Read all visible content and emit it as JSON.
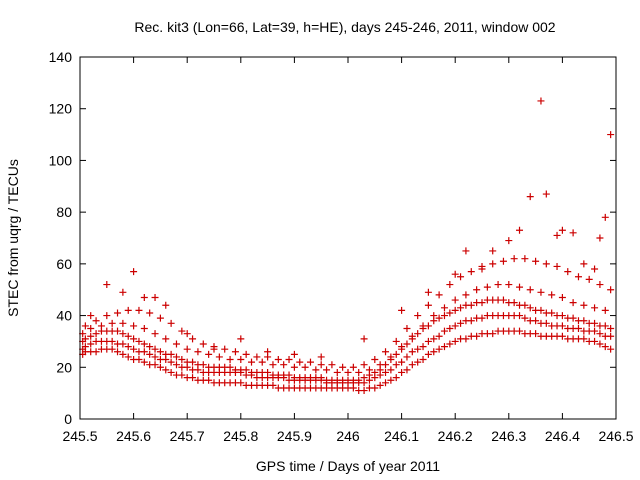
{
  "chart_data": {
    "type": "scatter",
    "title": "Rec. kit3 (Lon=66, Lat=39, h=HE), days 245-246, 2011, window 002",
    "xlabel": "GPS time / Days of year 2011",
    "ylabel": "STEC from uqrg / TECUs",
    "xlim": [
      245.5,
      246.5
    ],
    "ylim": [
      0,
      140
    ],
    "xticks": [
      "245.5",
      "245.6",
      "245.7",
      "245.8",
      "245.9",
      "246",
      "246.1",
      "246.2",
      "246.3",
      "246.4",
      "246.5"
    ],
    "yticks": [
      "0",
      "20",
      "40",
      "60",
      "80",
      "100",
      "120",
      "140"
    ],
    "grid": false,
    "marker": "+",
    "color": "#cc0000",
    "series": [
      {
        "x": [
          245.505,
          245.51,
          245.52,
          245.53,
          245.54,
          245.55,
          245.56,
          245.57,
          245.58,
          245.59,
          245.6,
          245.61,
          245.62,
          245.63,
          245.64,
          245.65,
          245.66,
          245.67,
          245.68,
          245.69,
          245.7,
          245.71,
          245.72,
          245.73,
          245.74,
          245.75,
          245.76,
          245.77,
          245.78,
          245.79,
          245.8,
          245.81,
          245.82,
          245.83,
          245.84,
          245.85,
          245.86,
          245.87,
          245.88,
          245.89,
          245.9,
          245.91,
          245.92,
          245.93,
          245.94,
          245.95,
          245.96,
          245.97,
          245.98,
          245.99,
          246.0,
          246.01,
          246.02,
          246.03,
          246.04,
          246.05,
          246.06,
          246.07,
          246.08,
          246.09,
          246.1,
          246.11,
          246.12,
          246.13,
          246.14,
          246.15,
          246.16,
          246.17,
          246.18,
          246.19,
          246.2,
          246.21,
          246.22,
          246.23,
          246.24,
          246.25,
          246.26,
          246.27,
          246.28,
          246.29,
          246.3,
          246.31,
          246.32,
          246.33,
          246.34,
          246.35,
          246.36,
          246.37,
          246.38,
          246.39,
          246.4,
          246.41,
          246.42,
          246.43,
          246.44,
          246.45,
          246.46,
          246.47,
          246.48,
          246.49
        ],
        "y": [
          25,
          26,
          26,
          26,
          27,
          27,
          27,
          26,
          25,
          24,
          23,
          23,
          22,
          21,
          21,
          20,
          19,
          18,
          17,
          17,
          16,
          16,
          15,
          15,
          15,
          14,
          14,
          14,
          14,
          14,
          14,
          13,
          13,
          13,
          13,
          13,
          13,
          12,
          12,
          12,
          12,
          12,
          12,
          12,
          12,
          12,
          12,
          12,
          12,
          12,
          12,
          12,
          11,
          11,
          12,
          12,
          13,
          14,
          15,
          16,
          18,
          19,
          21,
          22,
          23,
          25,
          26,
          27,
          28,
          29,
          30,
          31,
          31,
          32,
          32,
          33,
          33,
          33,
          34,
          34,
          34,
          34,
          34,
          33,
          33,
          33,
          32,
          32,
          32,
          32,
          32,
          31,
          31,
          31,
          31,
          30,
          30,
          29,
          28,
          27
        ]
      },
      {
        "x": [
          245.505,
          245.51,
          245.52,
          245.53,
          245.54,
          245.55,
          245.56,
          245.57,
          245.58,
          245.59,
          245.6,
          245.61,
          245.62,
          245.63,
          245.64,
          245.65,
          245.66,
          245.67,
          245.68,
          245.69,
          245.7,
          245.71,
          245.72,
          245.73,
          245.74,
          245.75,
          245.76,
          245.77,
          245.78,
          245.79,
          245.8,
          245.81,
          245.82,
          245.83,
          245.84,
          245.85,
          245.86,
          245.87,
          245.88,
          245.89,
          245.9,
          245.91,
          245.92,
          245.93,
          245.94,
          245.95,
          245.96,
          245.97,
          245.98,
          245.99,
          246.0,
          246.01,
          246.02,
          246.03,
          246.04,
          246.05,
          246.06,
          246.07,
          246.08,
          246.09,
          246.1,
          246.11,
          246.12,
          246.13,
          246.14,
          246.15,
          246.16,
          246.17,
          246.18,
          246.19,
          246.2,
          246.21,
          246.22,
          246.23,
          246.24,
          246.25,
          246.26,
          246.27,
          246.28,
          246.29,
          246.3,
          246.31,
          246.32,
          246.33,
          246.34,
          246.35,
          246.36,
          246.37,
          246.38,
          246.39,
          246.4,
          246.41,
          246.42,
          246.43,
          246.44,
          246.45,
          246.46,
          246.47,
          246.48,
          246.49
        ],
        "y": [
          27,
          28,
          29,
          30,
          30,
          30,
          30,
          29,
          29,
          28,
          27,
          26,
          26,
          25,
          24,
          23,
          23,
          22,
          21,
          20,
          20,
          19,
          19,
          18,
          18,
          18,
          18,
          18,
          18,
          18,
          18,
          17,
          17,
          16,
          16,
          16,
          16,
          16,
          16,
          15,
          15,
          15,
          15,
          15,
          15,
          15,
          14,
          14,
          14,
          14,
          14,
          14,
          14,
          14,
          15,
          16,
          17,
          18,
          19,
          21,
          22,
          24,
          26,
          27,
          28,
          30,
          31,
          32,
          34,
          35,
          36,
          37,
          38,
          38,
          39,
          39,
          40,
          40,
          40,
          40,
          40,
          40,
          40,
          39,
          38,
          38,
          37,
          37,
          36,
          36,
          36,
          35,
          35,
          35,
          34,
          34,
          34,
          33,
          32,
          32
        ]
      },
      {
        "x": [
          245.505,
          245.51,
          245.52,
          245.53,
          245.54,
          245.55,
          245.56,
          245.57,
          245.58,
          245.59,
          245.6,
          245.61,
          245.62,
          245.63,
          245.64,
          245.65,
          245.66,
          245.67,
          245.68,
          245.69,
          245.7,
          245.71,
          245.72,
          245.73,
          245.74,
          245.75,
          245.76,
          245.77,
          245.78,
          245.79,
          245.8,
          245.81,
          245.82,
          245.83,
          245.84,
          245.85,
          245.86,
          245.87,
          245.88,
          245.89,
          245.9,
          245.91,
          245.92,
          245.93,
          245.94,
          245.95,
          245.96,
          245.97,
          245.98,
          245.99,
          246.0,
          246.01,
          246.02,
          246.03,
          246.04,
          246.05,
          246.06,
          246.07,
          246.08,
          246.09,
          246.1,
          246.11,
          246.12,
          246.13,
          246.14,
          246.15,
          246.16,
          246.17,
          246.18,
          246.19,
          246.2,
          246.21,
          246.22,
          246.23,
          246.24,
          246.25,
          246.26,
          246.27,
          246.28,
          246.29,
          246.3,
          246.31,
          246.32,
          246.33,
          246.34,
          246.35,
          246.36,
          246.37,
          246.38,
          246.39,
          246.4,
          246.41,
          246.42,
          246.43,
          246.44,
          246.45,
          246.46,
          246.47,
          246.48,
          246.49
        ],
        "y": [
          30,
          31,
          32,
          33,
          34,
          34,
          34,
          34,
          33,
          32,
          31,
          30,
          29,
          28,
          27,
          26,
          25,
          25,
          24,
          23,
          22,
          22,
          21,
          21,
          20,
          20,
          20,
          20,
          20,
          19,
          19,
          19,
          18,
          18,
          18,
          18,
          17,
          17,
          17,
          17,
          16,
          16,
          16,
          16,
          16,
          16,
          15,
          15,
          15,
          15,
          15,
          15,
          15,
          16,
          17,
          18,
          19,
          21,
          23,
          25,
          27,
          29,
          31,
          33,
          35,
          36,
          38,
          39,
          40,
          41,
          42,
          43,
          44,
          44,
          45,
          45,
          46,
          46,
          46,
          46,
          45,
          45,
          44,
          44,
          43,
          42,
          42,
          41,
          41,
          40,
          40,
          39,
          39,
          38,
          38,
          37,
          37,
          36,
          36,
          35
        ]
      },
      {
        "x": [
          245.505,
          245.52,
          245.54,
          245.56,
          245.58,
          245.6,
          245.62,
          245.64,
          245.66,
          245.68,
          245.7,
          245.72,
          245.74,
          245.76,
          245.78,
          245.8,
          245.82,
          245.84,
          245.86,
          245.88,
          245.9,
          245.92,
          245.94,
          245.96,
          245.98,
          246.0,
          246.02,
          246.04,
          246.06,
          246.08,
          246.1,
          246.12,
          246.14,
          246.16,
          246.18,
          246.2,
          246.22,
          246.24,
          246.26,
          246.28,
          246.3,
          246.32,
          246.34,
          246.36,
          246.38,
          246.4,
          246.42,
          246.44,
          246.46,
          246.48
        ],
        "y": [
          33,
          35,
          36,
          37,
          37,
          36,
          35,
          33,
          31,
          29,
          27,
          26,
          25,
          24,
          23,
          23,
          22,
          22,
          21,
          21,
          20,
          20,
          19,
          19,
          18,
          18,
          18,
          19,
          21,
          24,
          28,
          32,
          36,
          40,
          43,
          46,
          48,
          50,
          51,
          52,
          52,
          51,
          50,
          49,
          48,
          47,
          45,
          44,
          43,
          42
        ]
      },
      {
        "x": [
          245.51,
          245.53,
          245.55,
          245.57,
          245.59,
          245.61,
          245.63,
          245.65,
          245.67,
          245.69,
          245.71,
          245.73,
          245.75,
          245.77,
          245.79,
          245.81,
          245.83,
          245.85,
          245.87,
          245.89,
          245.91,
          245.93,
          245.95,
          245.97,
          245.99,
          246.01,
          246.03,
          246.05,
          246.07,
          246.09,
          246.11,
          246.13,
          246.15,
          246.17,
          246.19,
          246.21,
          246.23,
          246.25,
          246.27,
          246.29,
          246.31,
          246.33,
          246.35,
          246.37,
          246.39,
          246.41,
          246.43,
          246.45,
          246.47,
          246.49
        ],
        "y": [
          36,
          38,
          40,
          41,
          42,
          42,
          41,
          39,
          37,
          34,
          31,
          29,
          28,
          27,
          26,
          25,
          24,
          24,
          23,
          23,
          22,
          22,
          21,
          21,
          20,
          20,
          21,
          23,
          26,
          30,
          35,
          40,
          44,
          48,
          52,
          55,
          57,
          59,
          60,
          61,
          62,
          62,
          61,
          60,
          59,
          57,
          55,
          54,
          52,
          50
        ]
      },
      {
        "x": [
          245.52,
          245.55,
          245.58,
          245.6,
          245.62,
          245.64,
          245.66,
          245.7,
          245.75,
          245.8,
          245.85,
          245.9,
          245.95,
          246.03,
          246.1,
          246.15,
          246.2,
          246.22,
          246.25,
          246.27,
          246.3,
          246.32,
          246.34,
          246.36,
          246.37,
          246.39,
          246.4,
          246.42,
          246.44,
          246.46,
          246.47,
          246.48,
          246.49
        ],
        "y": [
          40,
          52,
          49,
          57,
          47,
          47,
          44,
          33,
          27,
          31,
          26,
          25,
          24,
          31,
          42,
          49,
          56,
          65,
          58,
          65,
          69,
          73,
          86,
          123,
          87,
          71,
          73,
          72,
          60,
          58,
          70,
          78,
          110
        ]
      }
    ]
  }
}
